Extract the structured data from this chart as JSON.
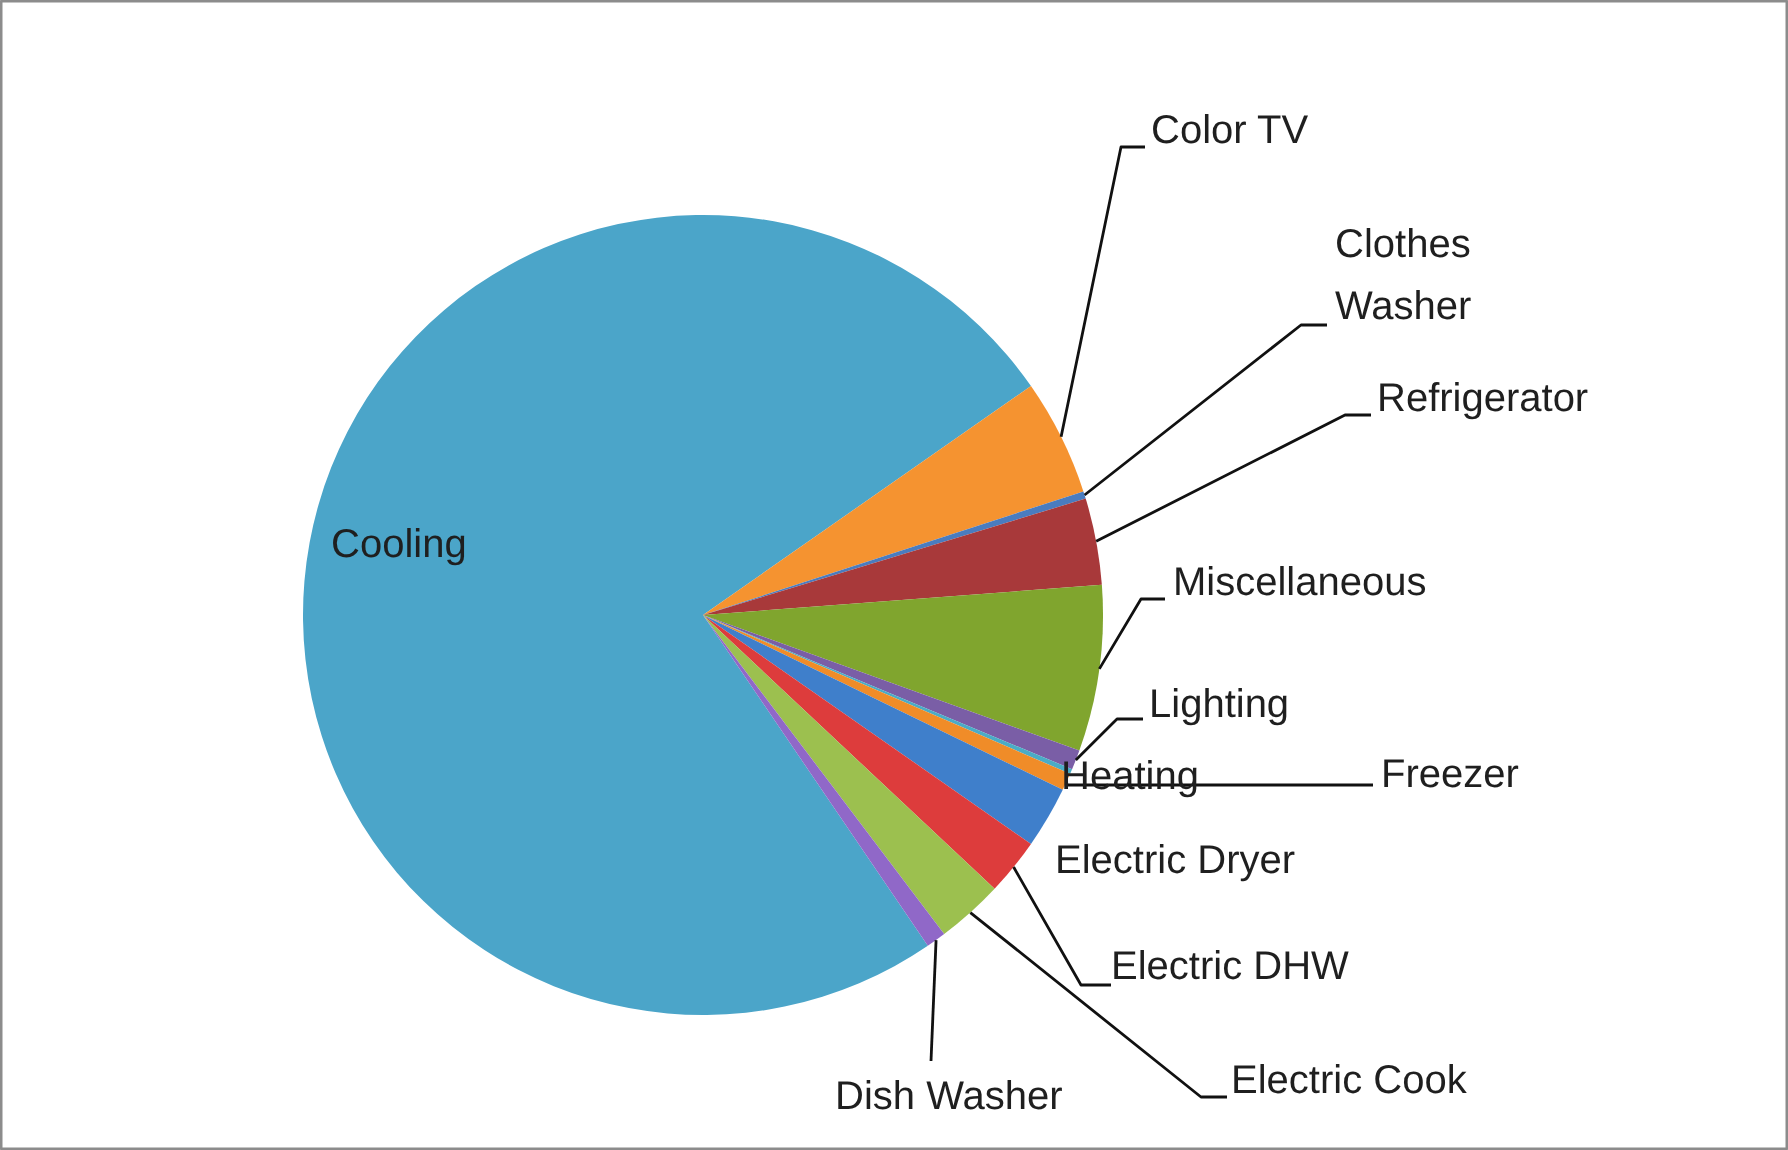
{
  "chart_data": {
    "type": "pie",
    "categories": [
      "Cooling",
      "Color TV",
      "Clothes Washer",
      "Refrigerator",
      "Miscellaneous",
      "Lighting",
      "Heating",
      "Freezer",
      "Electric Dryer",
      "Electric DHW",
      "Electric Cook",
      "Dish Washer"
    ],
    "values": [
      74.8,
      4.7,
      0.3,
      3.5,
      6.7,
      0.8,
      0.2,
      0.7,
      2.5,
      2.3,
      2.7,
      0.8
    ],
    "colors": [
      "#4ba5c9",
      "#f59330",
      "#4a7cbf",
      "#a8393a",
      "#80a52e",
      "#7a5ea6",
      "#4bacc6",
      "#f08c28",
      "#3f7fcb",
      "#dd3c3c",
      "#9cc04f",
      "#9068c8"
    ]
  }
}
